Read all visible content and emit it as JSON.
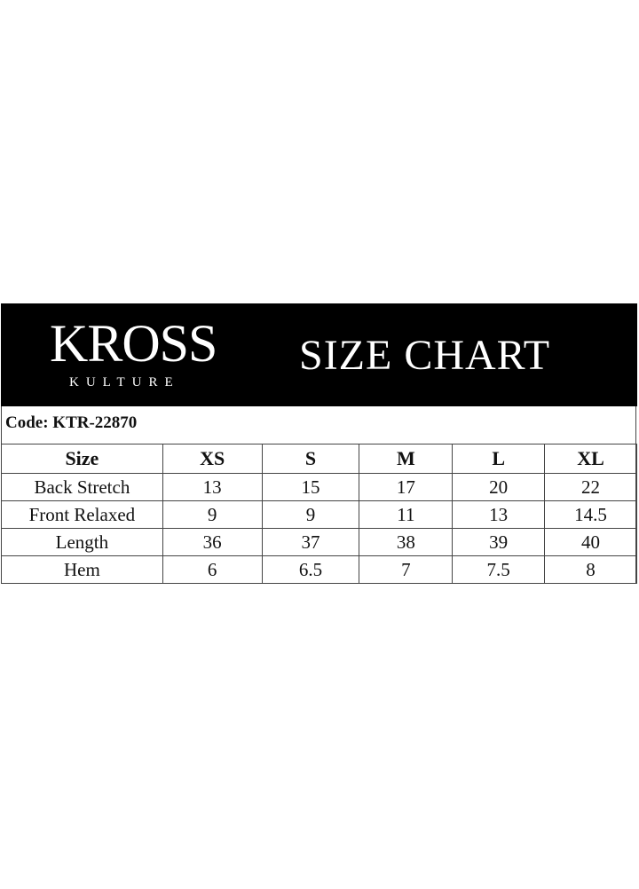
{
  "brand": {
    "logo_main": "KROSS",
    "logo_sub": "KULTURE"
  },
  "header": {
    "title": "SIZE CHART"
  },
  "code_label": "Code: KTR-22870",
  "table": {
    "columns": [
      "Size",
      "XS",
      "S",
      "M",
      "L",
      "XL"
    ],
    "rows": [
      [
        "Back Stretch",
        "13",
        "15",
        "17",
        "20",
        "22"
      ],
      [
        "Front Relaxed",
        "9",
        "9",
        "11",
        "13",
        "14.5"
      ],
      [
        "Length",
        "36",
        "37",
        "38",
        "39",
        "40"
      ],
      [
        "Hem",
        "6",
        "6.5",
        "7",
        "7.5",
        "8"
      ]
    ]
  },
  "colors": {
    "band": "#000000",
    "text": "#111111"
  }
}
